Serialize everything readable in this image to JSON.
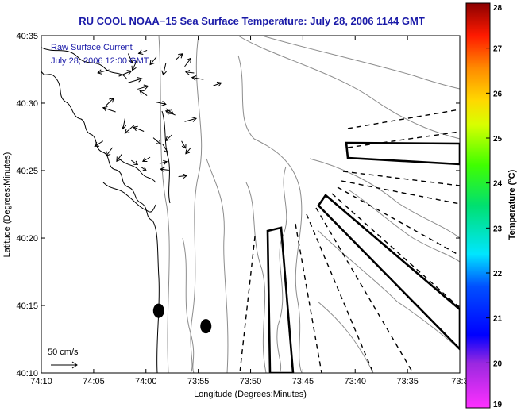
{
  "chart_data": {
    "type": "scatter",
    "title": "RU COOL  NOAA−15  Sea Surface Temperature:  July 28, 2006 1144 GMT",
    "annotation_line1": "Raw Surface Current",
    "annotation_line2": "July 28, 2006 12:00 GMT",
    "xlabel": "Longitude (Degrees:Minutes)",
    "ylabel": "Latitude (Degrees:Minutes)",
    "xlim": [
      -74.1667,
      -73.5
    ],
    "ylim": [
      40.1667,
      40.5833
    ],
    "x_ticks": [
      {
        "value": -74.1667,
        "label": "74:10"
      },
      {
        "value": -74.0833,
        "label": "74:05"
      },
      {
        "value": -74.0,
        "label": "74:00"
      },
      {
        "value": -73.9167,
        "label": "73:55"
      },
      {
        "value": -73.8333,
        "label": "73:50"
      },
      {
        "value": -73.75,
        "label": "73:45"
      },
      {
        "value": -73.6667,
        "label": "73:40"
      },
      {
        "value": -73.5833,
        "label": "73:35"
      },
      {
        "value": -73.5,
        "label": "73:3"
      }
    ],
    "y_ticks": [
      {
        "value": 40.1667,
        "label": "40:10"
      },
      {
        "value": 40.25,
        "label": "40:15"
      },
      {
        "value": 40.3333,
        "label": "40:20"
      },
      {
        "value": 40.4167,
        "label": "40:25"
      },
      {
        "value": 40.5,
        "label": "40:30"
      },
      {
        "value": 40.5833,
        "label": "40:35"
      }
    ],
    "scale_arrow_label": "50 cm/s",
    "colorbar": {
      "label": "Temperature (°C)",
      "range": [
        19,
        28
      ],
      "ticks": [
        "28",
        "27",
        "26",
        "25",
        "24",
        "23",
        "22",
        "21",
        "20",
        "19"
      ]
    },
    "dots": [
      {
        "lon": -73.9797,
        "lat": 40.2435
      },
      {
        "lon": -73.9045,
        "lat": 40.2244
      }
    ],
    "vectors": [
      {
        "lon": -74.0283,
        "lat": 40.5612,
        "u": 8,
        "v": -18
      },
      {
        "lon": -74.0133,
        "lat": 40.5548,
        "u": -10,
        "v": -22
      },
      {
        "lon": -73.9983,
        "lat": 40.5652,
        "u": -16,
        "v": -6
      },
      {
        "lon": -73.9833,
        "lat": 40.5572,
        "u": -12,
        "v": -15
      },
      {
        "lon": -73.9683,
        "lat": 40.5492,
        "u": -5,
        "v": -22
      },
      {
        "lon": -73.9533,
        "lat": 40.5532,
        "u": 14,
        "v": 12
      },
      {
        "lon": -73.9383,
        "lat": 40.5452,
        "u": 12,
        "v": 16
      },
      {
        "lon": -73.9233,
        "lat": 40.5372,
        "u": -16,
        "v": 2
      },
      {
        "lon": -73.9083,
        "lat": 40.5292,
        "u": -22,
        "v": 4
      },
      {
        "lon": -73.8933,
        "lat": 40.5212,
        "u": 16,
        "v": 6
      },
      {
        "lon": -74.0583,
        "lat": 40.5412,
        "u": -22,
        "v": -6
      },
      {
        "lon": -74.0433,
        "lat": 40.5332,
        "u": 24,
        "v": 10
      },
      {
        "lon": -74.0283,
        "lat": 40.5252,
        "u": 26,
        "v": 8
      },
      {
        "lon": -74.0133,
        "lat": 40.5172,
        "u": 20,
        "v": 6
      },
      {
        "lon": -73.9983,
        "lat": 40.5092,
        "u": -14,
        "v": 10
      },
      {
        "lon": -73.9833,
        "lat": 40.5012,
        "u": 18,
        "v": -4
      },
      {
        "lon": -73.9683,
        "lat": 40.4932,
        "u": 14,
        "v": -10
      },
      {
        "lon": -73.9533,
        "lat": 40.4852,
        "u": -18,
        "v": 8
      },
      {
        "lon": -73.9383,
        "lat": 40.4772,
        "u": 22,
        "v": 6
      },
      {
        "lon": -74.0633,
        "lat": 40.4972,
        "u": 14,
        "v": 14
      },
      {
        "lon": -74.0483,
        "lat": 40.4892,
        "u": -24,
        "v": 8
      },
      {
        "lon": -74.0333,
        "lat": 40.4812,
        "u": -4,
        "v": -20
      },
      {
        "lon": -74.0183,
        "lat": 40.4732,
        "u": -18,
        "v": -16
      },
      {
        "lon": -74.0033,
        "lat": 40.4652,
        "u": -20,
        "v": 8
      },
      {
        "lon": -73.9883,
        "lat": 40.4572,
        "u": 14,
        "v": -12
      },
      {
        "lon": -73.9733,
        "lat": 40.4492,
        "u": 10,
        "v": -16
      },
      {
        "lon": -73.9583,
        "lat": 40.4612,
        "u": -12,
        "v": -12
      },
      {
        "lon": -73.9433,
        "lat": 40.4532,
        "u": 8,
        "v": -14
      },
      {
        "lon": -73.9283,
        "lat": 40.4452,
        "u": -10,
        "v": -12
      },
      {
        "lon": -74.0683,
        "lat": 40.4532,
        "u": -16,
        "v": -10
      },
      {
        "lon": -74.0533,
        "lat": 40.4452,
        "u": -12,
        "v": -16
      },
      {
        "lon": -74.0383,
        "lat": 40.4372,
        "u": -10,
        "v": -14
      },
      {
        "lon": -74.0233,
        "lat": 40.4292,
        "u": 12,
        "v": -8
      },
      {
        "lon": -74.0083,
        "lat": 40.4212,
        "u": 10,
        "v": -6
      },
      {
        "lon": -73.9933,
        "lat": 40.4332,
        "u": -14,
        "v": -8
      },
      {
        "lon": -73.9783,
        "lat": 40.4252,
        "u": 14,
        "v": 4
      },
      {
        "lon": -73.9633,
        "lat": 40.4172,
        "u": -16,
        "v": 2
      },
      {
        "lon": -73.9483,
        "lat": 40.4092,
        "u": 16,
        "v": 2
      }
    ]
  }
}
